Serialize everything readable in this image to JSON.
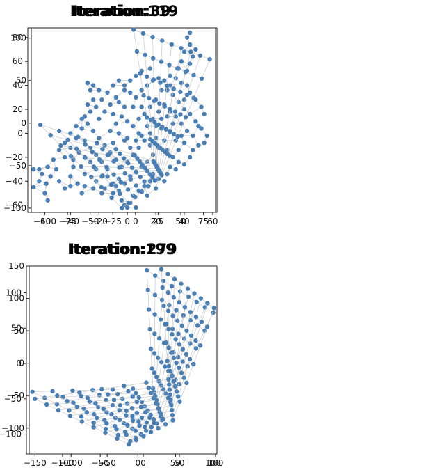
{
  "chart_data": [
    {
      "type": "scatter",
      "title": "Iteration:39",
      "xlabel": "",
      "ylabel": "",
      "xlim": [
        -70,
        62
      ],
      "ylim": [
        -66,
        88
      ],
      "xticks": [
        -60,
        -40,
        -20,
        0,
        20,
        40,
        60
      ],
      "yticks": [
        -60,
        -40,
        -20,
        0,
        20,
        40,
        60,
        80
      ],
      "grid": false,
      "color": "#4a7fb5",
      "edge_color": "#c8c8c8",
      "points": [
        [
          -66,
          -30
        ],
        [
          -62,
          -30
        ],
        [
          -66,
          -45
        ],
        [
          -62,
          -40
        ],
        [
          -58,
          -50
        ],
        [
          -56,
          -56
        ],
        [
          -57,
          -42
        ],
        [
          -54,
          -36
        ],
        [
          -50,
          -30
        ],
        [
          -48,
          -40
        ],
        [
          -44,
          -46
        ],
        [
          -40,
          -44
        ],
        [
          -40,
          -36
        ],
        [
          -38,
          -28
        ],
        [
          -35,
          -42
        ],
        [
          -32,
          -50
        ],
        [
          -30,
          -44
        ],
        [
          -30,
          -34
        ],
        [
          -24,
          -46
        ],
        [
          -22,
          -40
        ],
        [
          -18,
          -50
        ],
        [
          -16,
          -46
        ],
        [
          -14,
          -36
        ],
        [
          -10,
          -50
        ],
        [
          -8,
          -44
        ],
        [
          -6,
          -38
        ],
        [
          -4,
          -56
        ],
        [
          -2,
          -60
        ],
        [
          0,
          -62
        ],
        [
          2,
          -58
        ],
        [
          4,
          -52
        ],
        [
          6,
          -62
        ],
        [
          8,
          -48
        ],
        [
          12,
          -44
        ],
        [
          14,
          -52
        ],
        [
          16,
          -40
        ],
        [
          18,
          -34
        ],
        [
          20,
          -46
        ],
        [
          22,
          -38
        ],
        [
          26,
          -40
        ],
        [
          28,
          -34
        ],
        [
          30,
          -28
        ],
        [
          34,
          -30
        ],
        [
          36,
          -24
        ],
        [
          40,
          -26
        ],
        [
          44,
          -20
        ],
        [
          46,
          -14
        ],
        [
          50,
          -10
        ],
        [
          54,
          -8
        ],
        [
          56,
          -2
        ],
        [
          52,
          4
        ],
        [
          48,
          10
        ],
        [
          44,
          16
        ],
        [
          40,
          20
        ],
        [
          36,
          26
        ],
        [
          32,
          32
        ],
        [
          28,
          36
        ],
        [
          26,
          44
        ],
        [
          30,
          48
        ],
        [
          34,
          46
        ],
        [
          38,
          42
        ],
        [
          42,
          40
        ],
        [
          44,
          34
        ],
        [
          40,
          28
        ],
        [
          48,
          28
        ],
        [
          52,
          22
        ],
        [
          54,
          16
        ],
        [
          50,
          6
        ],
        [
          46,
          -2
        ],
        [
          42,
          2
        ],
        [
          38,
          8
        ],
        [
          34,
          14
        ],
        [
          30,
          18
        ],
        [
          24,
          12
        ],
        [
          20,
          6
        ],
        [
          16,
          0
        ],
        [
          12,
          -6
        ],
        [
          8,
          -12
        ],
        [
          4,
          -18
        ],
        [
          0,
          -24
        ],
        [
          -4,
          -28
        ],
        [
          -8,
          -22
        ],
        [
          -12,
          -16
        ],
        [
          -16,
          -10
        ],
        [
          -20,
          -4
        ],
        [
          -24,
          2
        ],
        [
          -28,
          8
        ],
        [
          -26,
          18
        ],
        [
          -22,
          22
        ],
        [
          -18,
          28
        ],
        [
          -14,
          34
        ],
        [
          -10,
          40
        ],
        [
          -6,
          44
        ],
        [
          -2,
          40
        ],
        [
          2,
          34
        ],
        [
          6,
          30
        ],
        [
          10,
          36
        ],
        [
          14,
          40
        ],
        [
          18,
          44
        ],
        [
          22,
          46
        ],
        [
          16,
          54
        ],
        [
          10,
          52
        ],
        [
          6,
          48
        ],
        [
          2,
          44
        ],
        [
          -2,
          36
        ],
        [
          -8,
          30
        ],
        [
          -12,
          24
        ],
        [
          -16,
          18
        ],
        [
          -20,
          12
        ],
        [
          -24,
          28
        ],
        [
          -26,
          36
        ],
        [
          -28,
          42
        ],
        [
          -24,
          40
        ],
        [
          -20,
          36
        ],
        [
          -28,
          24
        ],
        [
          -30,
          14
        ],
        [
          -32,
          4
        ],
        [
          -36,
          -4
        ],
        [
          -40,
          -12
        ],
        [
          -44,
          -20
        ],
        [
          -48,
          -14
        ],
        [
          -52,
          -22
        ],
        [
          -56,
          -28
        ],
        [
          -60,
          -34
        ],
        [
          -44,
          -8
        ],
        [
          -40,
          0
        ],
        [
          -36,
          6
        ],
        [
          -32,
          12
        ],
        [
          0,
          10
        ],
        [
          4,
          6
        ],
        [
          8,
          0
        ],
        [
          -4,
          14
        ],
        [
          -8,
          8
        ],
        [
          -12,
          2
        ],
        [
          -2,
          -6
        ],
        [
          2,
          -12
        ],
        [
          6,
          -6
        ],
        [
          10,
          -2
        ],
        [
          14,
          6
        ],
        [
          18,
          12
        ],
        [
          22,
          18
        ],
        [
          26,
          24
        ],
        [
          30,
          2
        ],
        [
          26,
          -6
        ],
        [
          22,
          -12
        ],
        [
          18,
          -18
        ],
        [
          14,
          -24
        ],
        [
          10,
          -28
        ],
        [
          6,
          -32
        ],
        [
          2,
          -36
        ],
        [
          -2,
          -42
        ],
        [
          -6,
          -48
        ],
        [
          -10,
          -42
        ],
        [
          -14,
          -30
        ],
        [
          -18,
          -24
        ],
        [
          -22,
          -18
        ],
        [
          -26,
          -12
        ],
        [
          -30,
          -6
        ],
        [
          -34,
          -16
        ],
        [
          -38,
          -22
        ],
        [
          42,
          52
        ],
        [
          44,
          58
        ],
        [
          46,
          64
        ],
        [
          48,
          70
        ],
        [
          44,
          74
        ],
        [
          42,
          80
        ],
        [
          44,
          84
        ],
        [
          40,
          68
        ],
        [
          38,
          60
        ],
        [
          36,
          54
        ],
        [
          30,
          40
        ],
        [
          24,
          36
        ],
        [
          20,
          28
        ],
        [
          16,
          22
        ],
        [
          12,
          16
        ],
        [
          8,
          12
        ],
        [
          -6,
          0
        ],
        [
          -10,
          -8
        ],
        [
          -14,
          -18
        ],
        [
          -18,
          -36
        ],
        [
          -22,
          -30
        ],
        [
          -26,
          -24
        ],
        [
          -30,
          -20
        ],
        [
          0,
          -4
        ],
        [
          4,
          22
        ],
        [
          -2,
          22
        ],
        [
          -6,
          26
        ],
        [
          10,
          22
        ],
        [
          -10,
          16
        ],
        [
          28,
          -14
        ],
        [
          32,
          -20
        ],
        [
          36,
          -14
        ],
        [
          40,
          -8
        ],
        [
          34,
          -6
        ],
        [
          38,
          -2
        ],
        [
          32,
          8
        ],
        [
          28,
          14
        ],
        [
          24,
          4
        ],
        [
          20,
          -4
        ],
        [
          16,
          -10
        ]
      ]
    },
    {
      "type": "scatter",
      "title": "Iteration:119",
      "xlabel": "",
      "ylabel": "",
      "xlim": [
        -115,
        90
      ],
      "ylim": [
        -105,
        112
      ],
      "xticks": [
        -100,
        -75,
        -50,
        -25,
        0,
        25,
        50,
        75
      ],
      "yticks": [
        -100,
        -50,
        0,
        50,
        100
      ],
      "grid": false,
      "color": "#4a7fb5",
      "edge_color": "#c8c8c8",
      "grid_fan": {
        "apex": [
          20,
          -45
        ],
        "rows": 9,
        "cols": 13,
        "left": [
          -105,
          -2
        ],
        "bottom_left": [
          -15,
          -100
        ],
        "bottom_right": [
          35,
          -72
        ],
        "top_left": [
          -2,
          110
        ],
        "top_right": [
          82,
          75
        ]
      }
    },
    {
      "type": "scatter",
      "title": "Iteration:199",
      "xlabel": "",
      "ylabel": "",
      "xlim": [
        -148,
        105
      ],
      "ylim": [
        -128,
        138
      ],
      "xticks": [
        -100,
        -50,
        0,
        50,
        100
      ],
      "yticks": [
        -100,
        -50,
        0,
        50,
        100
      ],
      "grid": false,
      "color": "#4a7fb5",
      "edge_color": "#c8c8c8",
      "grid_fan": {
        "apex": [
          20,
          -35
        ],
        "rows": 9,
        "cols": 13,
        "left": [
          -140,
          -40
        ],
        "bottom_left": [
          -10,
          -110
        ],
        "bottom_right": [
          40,
          -110
        ],
        "top_left": [
          12,
          132
        ],
        "top_right": [
          100,
          72
        ]
      }
    },
    {
      "type": "scatter",
      "title": "Iteration:279",
      "xlabel": "",
      "ylabel": "",
      "xlim": [
        -158,
        102
      ],
      "ylim": [
        -140,
        150
      ],
      "xticks": [
        -150,
        -100,
        -50,
        0,
        50,
        100
      ],
      "yticks": [
        -100,
        -50,
        0,
        50,
        100,
        150
      ],
      "grid": false,
      "color": "#4a7fb5",
      "edge_color": "#c8c8c8",
      "grid_fan": {
        "apex": [
          35,
          -25
        ],
        "rows": 9,
        "cols": 13,
        "left": [
          -150,
          -55
        ],
        "bottom_left": [
          -20,
          -125
        ],
        "bottom_right": [
          45,
          -130
        ],
        "top_left": [
          25,
          145
        ],
        "top_right": [
          98,
          85
        ]
      }
    }
  ]
}
